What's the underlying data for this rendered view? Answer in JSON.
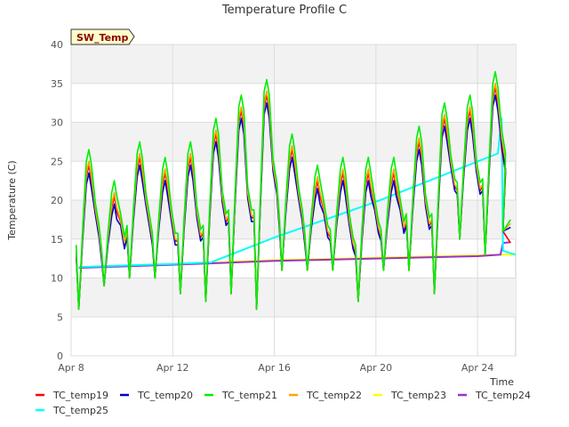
{
  "chart_data": {
    "type": "line",
    "title": "Temperature Profile C",
    "xlabel": "Time",
    "ylabel": "Temperature (C)",
    "badge": "SW_Temp",
    "xlim": [
      0,
      17.5
    ],
    "ylim": [
      0,
      40
    ],
    "x_ticks": [
      {
        "value": 0,
        "label": "Apr 8"
      },
      {
        "value": 4,
        "label": "Apr 12"
      },
      {
        "value": 8,
        "label": "Apr 16"
      },
      {
        "value": 12,
        "label": "Apr 20"
      },
      {
        "value": 16,
        "label": "Apr 24"
      }
    ],
    "y_ticks": [
      0,
      5,
      10,
      15,
      20,
      25,
      30,
      35,
      40
    ],
    "grid": true,
    "legend_position": "bottom",
    "daily_cycles": {
      "day_offsets": [
        0.25,
        1.25,
        2.25,
        3.25,
        4.25,
        5.25,
        6.25,
        7.25,
        8.25,
        9.25,
        10.25,
        11.25,
        12.25,
        13.25,
        14.25,
        15.25,
        16.25
      ],
      "highs": [
        25,
        21,
        26,
        24,
        26,
        29,
        32,
        34,
        27,
        23,
        24,
        24,
        24,
        28,
        31,
        32,
        35
      ],
      "lows": [
        6,
        9,
        10,
        10,
        8,
        7,
        8,
        6,
        11,
        11,
        11,
        7,
        11,
        11,
        8,
        15,
        13
      ]
    },
    "series": [
      {
        "name": "TC_temp19",
        "color": "#ff0000",
        "peak_offset": -0.5,
        "end_value": 14.5
      },
      {
        "name": "TC_temp20",
        "color": "#0000cc",
        "peak_offset": -1.5,
        "end_value": 16.5
      },
      {
        "name": "TC_temp21",
        "color": "#00ee00",
        "peak_offset": 1.5,
        "end_value": 17.5
      },
      {
        "name": "TC_temp22",
        "color": "#ffa500",
        "peak_offset": 0,
        "end_value": 17.0
      },
      {
        "name": "TC_temp23",
        "color": "#ffff00",
        "points": [
          [
            0.3,
            11.4
          ],
          [
            4,
            11.8
          ],
          [
            8,
            12.3
          ],
          [
            12,
            12.6
          ],
          [
            16,
            12.9
          ],
          [
            17.0,
            13.0
          ],
          [
            17.5,
            13.0
          ]
        ]
      },
      {
        "name": "TC_temp24",
        "color": "#9932cc",
        "points": [
          [
            0.3,
            11.3
          ],
          [
            4,
            11.7
          ],
          [
            8,
            12.2
          ],
          [
            12,
            12.5
          ],
          [
            16,
            12.8
          ],
          [
            16.9,
            13.0
          ],
          [
            17.0,
            14.5
          ],
          [
            17.3,
            14.6
          ]
        ]
      },
      {
        "name": "TC_temp25",
        "color": "#00ffff",
        "points": [
          [
            0.3,
            11.4
          ],
          [
            2,
            11.6
          ],
          [
            4,
            11.8
          ],
          [
            5.5,
            12.0
          ],
          [
            8,
            15.2
          ],
          [
            12,
            19.8
          ],
          [
            16.8,
            26.0
          ],
          [
            16.95,
            30.5
          ],
          [
            17.0,
            13.5
          ],
          [
            17.5,
            13.0
          ]
        ]
      }
    ]
  }
}
